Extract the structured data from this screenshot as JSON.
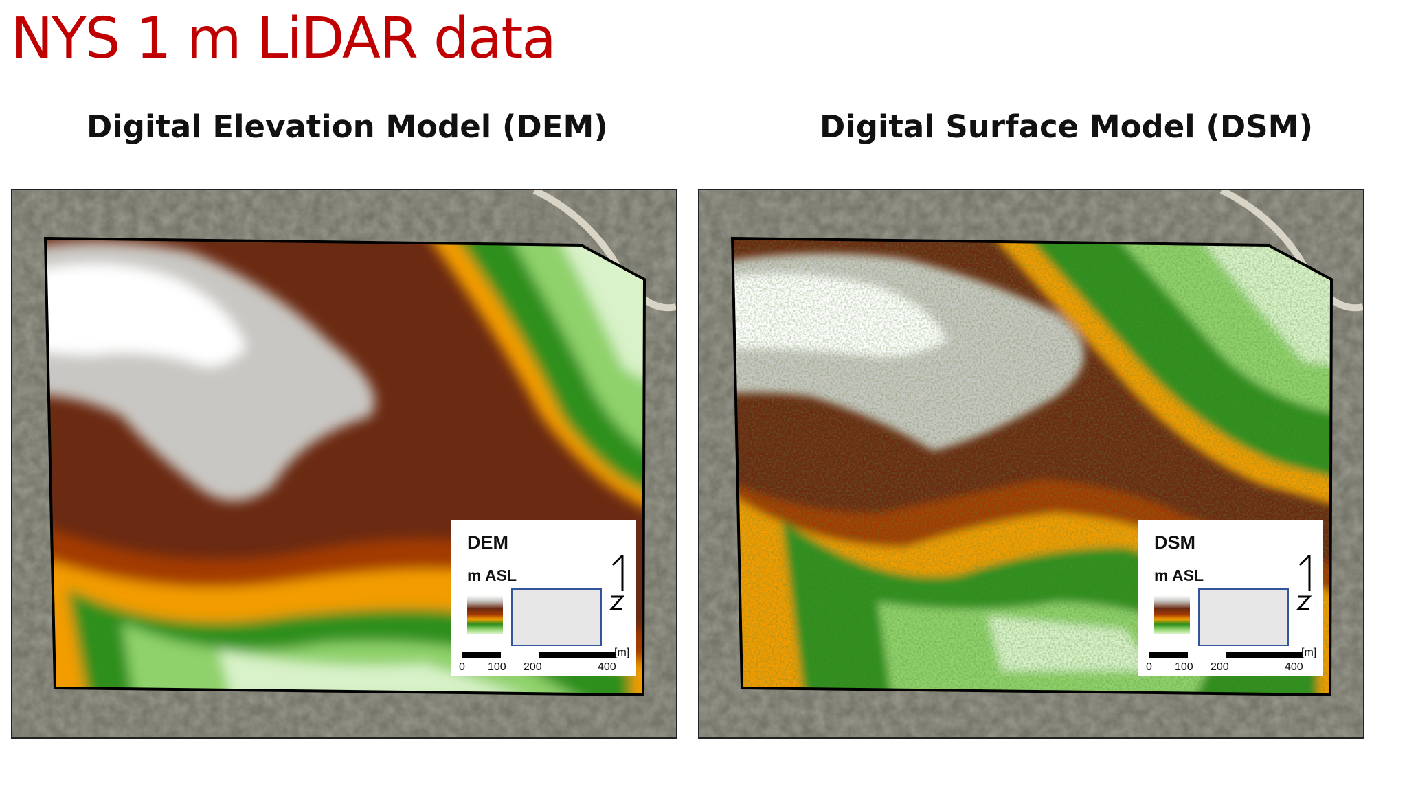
{
  "slide": {
    "title": "NYS 1 m LiDAR data"
  },
  "panels": [
    {
      "heading": "Digital Elevation Model (DEM)",
      "legend": {
        "title": "DEM",
        "unit": "m ASL"
      },
      "scale": {
        "ticks": [
          "0",
          "100",
          "200",
          "400"
        ],
        "unit": "[m]"
      }
    },
    {
      "heading": "Digital Surface Model (DSM)",
      "legend": {
        "title": "DSM",
        "unit": "m ASL"
      },
      "scale": {
        "ticks": [
          "0",
          "100",
          "200",
          "400"
        ],
        "unit": "[m]"
      }
    }
  ],
  "colors": {
    "title": "#c00000",
    "ramp": [
      "#ffffff",
      "#c9c7c3",
      "#6b2a12",
      "#a33a06",
      "#f39c00",
      "#2e8f1e",
      "#8fd16a",
      "#d9f2c9"
    ],
    "inset_border": "#33549a"
  }
}
